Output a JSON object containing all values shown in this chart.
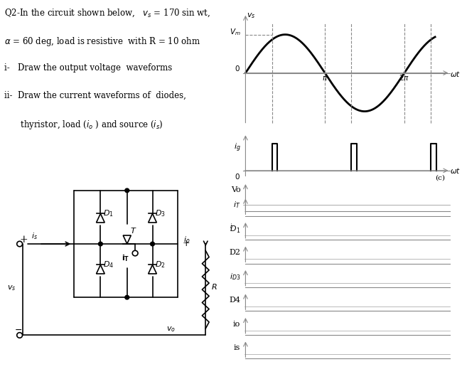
{
  "bg_color": "#ffffff",
  "text_color": "#000000",
  "line_color": "#000000",
  "gray_color": "#888888",
  "sine_lw": 2.0,
  "pulse_lw": 1.5,
  "circuit_lw": 1.2,
  "text_lines": [
    "Q2-In the circuit shown below,   $v_s$ = 170 sin wt,",
    "$\\alpha$ = 60 deg, load is resistive  with R = 10 ohm",
    "i-   Draw the output voltage  waveforms",
    "ii-  Draw the current waveforms of  diodes,",
    "      thyristor, load ($i_o$ ) and source ($i_s$)"
  ],
  "waveform_labels_right": [
    "$i_T$",
    "$^iD_1$",
    "D2",
    "$i_{D3}$",
    "D4",
    "io",
    "is"
  ]
}
